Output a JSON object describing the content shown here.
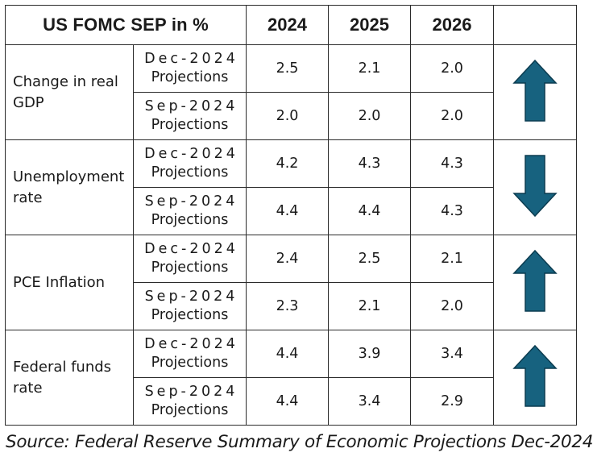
{
  "table": {
    "title": "US FOMC SEP in %",
    "years": [
      "2024",
      "2025",
      "2026"
    ],
    "rows": [
      {
        "label": "Change in real GDP",
        "trend": "up",
        "projections": [
          {
            "name_1": "Dec-2024",
            "name_2": "Projections",
            "values": [
              "2.5",
              "2.1",
              "2.0"
            ]
          },
          {
            "name_1": "Sep-2024",
            "name_2": "Projections",
            "values": [
              "2.0",
              "2.0",
              "2.0"
            ]
          }
        ]
      },
      {
        "label": "Unemployment rate",
        "trend": "down",
        "projections": [
          {
            "name_1": "Dec-2024",
            "name_2": "Projections",
            "values": [
              "4.2",
              "4.3",
              "4.3"
            ]
          },
          {
            "name_1": "Sep-2024",
            "name_2": "Projections",
            "values": [
              "4.4",
              "4.4",
              "4.3"
            ]
          }
        ]
      },
      {
        "label": "PCE Inflation",
        "trend": "up",
        "projections": [
          {
            "name_1": "Dec-2024",
            "name_2": "Projections",
            "values": [
              "2.4",
              "2.5",
              "2.1"
            ]
          },
          {
            "name_1": "Sep-2024",
            "name_2": "Projections",
            "values": [
              "2.3",
              "2.1",
              "2.0"
            ]
          }
        ]
      },
      {
        "label": "Federal funds rate",
        "trend": "up",
        "projections": [
          {
            "name_1": "Dec-2024",
            "name_2": "Projections",
            "values": [
              "4.4",
              "3.9",
              "3.4"
            ]
          },
          {
            "name_1": "Sep-2024",
            "name_2": "Projections",
            "values": [
              "4.4",
              "3.4",
              "2.9"
            ]
          }
        ]
      }
    ]
  },
  "source": "Source: Federal Reserve Summary of Economic Projections Dec-2024",
  "colors": {
    "arrow_fill": "#17627f",
    "arrow_stroke": "#0b3c50",
    "border": "#2b2b2b"
  },
  "icons": {
    "up": "arrow-up-icon",
    "down": "arrow-down-icon"
  }
}
